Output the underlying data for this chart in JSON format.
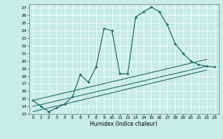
{
  "title": "",
  "xlabel": "Humidex (Indice chaleur)",
  "bg_color": "#c8ece6",
  "line_color": "#1a6e64",
  "xlim": [
    -0.5,
    23.5
  ],
  "ylim": [
    13,
    27.5
  ],
  "xticks": [
    0,
    1,
    2,
    3,
    4,
    5,
    6,
    7,
    8,
    9,
    10,
    11,
    12,
    13,
    14,
    15,
    16,
    17,
    18,
    19,
    20,
    21,
    22,
    23
  ],
  "yticks": [
    13,
    14,
    15,
    16,
    17,
    18,
    19,
    20,
    21,
    22,
    23,
    24,
    25,
    26,
    27
  ],
  "line1_x": [
    0,
    1,
    2,
    3,
    4,
    5,
    6,
    7,
    8,
    9,
    10,
    11,
    12,
    13,
    14,
    15,
    16,
    17,
    18,
    19,
    20,
    21,
    22,
    23
  ],
  "line1_y": [
    14.8,
    14.0,
    13.3,
    13.8,
    14.3,
    15.3,
    18.2,
    17.2,
    19.2,
    24.3,
    24.0,
    18.3,
    18.3,
    25.8,
    26.5,
    27.1,
    26.5,
    24.8,
    22.3,
    21.0,
    20.0,
    19.5,
    19.3,
    19.2
  ],
  "line2_x": [
    0,
    22
  ],
  "line2_y": [
    14.0,
    19.3
  ],
  "line3_x": [
    0,
    22
  ],
  "line3_y": [
    13.3,
    18.8
  ],
  "line4_x": [
    0,
    22
  ],
  "line4_y": [
    14.8,
    20.2
  ]
}
